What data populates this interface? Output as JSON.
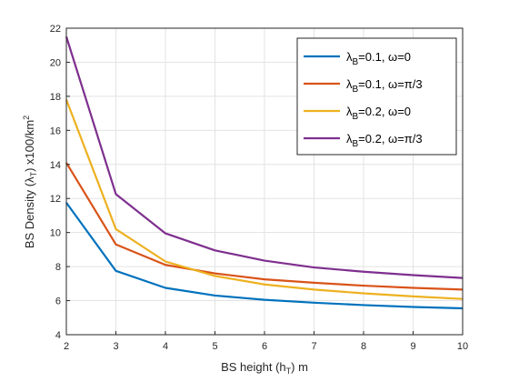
{
  "chart_data": {
    "type": "line",
    "xlabel": "BS height (h_T) m",
    "ylabel": "BS Density (λ_T) x100/km²",
    "xlim": [
      2,
      10
    ],
    "ylim": [
      4,
      22
    ],
    "xticks": [
      2,
      3,
      4,
      5,
      6,
      7,
      8,
      9,
      10
    ],
    "yticks": [
      4,
      6,
      8,
      10,
      12,
      14,
      16,
      18,
      20,
      22
    ],
    "grid": true,
    "legend_position": "top-right",
    "x": [
      2,
      3,
      4,
      5,
      6,
      7,
      8,
      9,
      10
    ],
    "series": [
      {
        "name": "λ_B=0.1, ω=0",
        "color": "#0072BD",
        "values": [
          11.75,
          7.75,
          6.75,
          6.3,
          6.05,
          5.88,
          5.74,
          5.63,
          5.55
        ]
      },
      {
        "name": "λ_B=0.1, ω=π/3",
        "color": "#D95319",
        "values": [
          14.1,
          9.3,
          8.1,
          7.6,
          7.25,
          7.05,
          6.88,
          6.75,
          6.65
        ]
      },
      {
        "name": "λ_B=0.2, ω=0",
        "color": "#EDB120",
        "values": [
          17.8,
          10.2,
          8.3,
          7.45,
          6.95,
          6.65,
          6.43,
          6.25,
          6.1
        ]
      },
      {
        "name": "λ_B=0.2, ω=π/3",
        "color": "#7E2F8E",
        "values": [
          21.5,
          12.25,
          9.95,
          8.95,
          8.35,
          7.95,
          7.7,
          7.5,
          7.33
        ]
      }
    ]
  }
}
